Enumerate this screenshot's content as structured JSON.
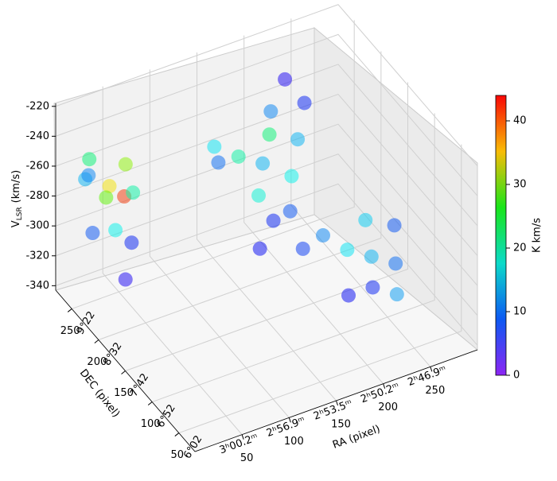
{
  "chart_data": {
    "type": "scatter3d",
    "xlabel": "RA (pixel)",
    "ylabel": "DEC (pixel)",
    "zlabel": [
      "V",
      "LSR",
      "(km/s)"
    ],
    "xlim": [
      0,
      300
    ],
    "xticks": [
      50,
      100,
      150,
      200,
      250
    ],
    "xticks2": [
      {
        "value": 50,
        "label": "3ʰ00.2ᵐ"
      },
      {
        "value": 100,
        "label": "2ʰ56.9ᵐ"
      },
      {
        "value": 150,
        "label": "2ʰ53.5ᵐ"
      },
      {
        "value": 200,
        "label": "2ʰ50.2ᵐ"
      },
      {
        "value": 250,
        "label": "2ʰ46.9ᵐ"
      }
    ],
    "ylim": [
      20,
      280
    ],
    "yticks": [
      50,
      100,
      150,
      200,
      250
    ],
    "yticks2": [
      {
        "value": 50,
        "label": "6°02"
      },
      {
        "value": 100,
        "label": "6°52"
      },
      {
        "value": 150,
        "label": "7°42"
      },
      {
        "value": 200,
        "label": "8°32"
      },
      {
        "value": 250,
        "label": "9°22"
      }
    ],
    "zlim": [
      -343,
      -218
    ],
    "zticks": [
      -340,
      -320,
      -300,
      -280,
      -260,
      -240,
      -220
    ],
    "colorbar_label": "K km/s",
    "clim": [
      0,
      44
    ],
    "cticks": [
      0,
      10,
      20,
      30,
      40
    ],
    "grid": true,
    "series": [
      {
        "x": [
          20,
          30,
          40,
          50,
          35,
          25,
          45,
          60,
          15,
          55,
          40,
          65,
          140,
          160,
          180,
          170,
          190,
          200,
          150,
          180,
          205,
          220,
          160,
          195,
          215,
          230,
          210,
          230,
          250,
          270,
          240,
          260,
          220,
          280,
          200,
          255
        ],
        "y": [
          260,
          270,
          250,
          240,
          230,
          255,
          265,
          255,
          245,
          235,
          220,
          250,
          230,
          220,
          210,
          200,
          215,
          230,
          240,
          190,
          200,
          215,
          180,
          185,
          230,
          220,
          150,
          140,
          130,
          120,
          110,
          100,
          120,
          140,
          170,
          150
        ],
        "z": [
          -265,
          -258,
          -270,
          -275,
          -290,
          -300,
          -285,
          -262,
          -255,
          -305,
          -320,
          -280,
          -258,
          -265,
          -270,
          -285,
          -255,
          -248,
          -275,
          -300,
          -280,
          -265,
          -310,
          -295,
          -230,
          -245,
          -300,
          -310,
          -315,
          -320,
          -325,
          -330,
          -330,
          -305,
          -315,
          -300
        ],
        "values": [
          12,
          20,
          35,
          42,
          15,
          8,
          28,
          30,
          10,
          6,
          4,
          18,
          14,
          18,
          12,
          16,
          20,
          10,
          9,
          6,
          15,
          12,
          5,
          8,
          4,
          6,
          10,
          14,
          12,
          9,
          6,
          11,
          5,
          8,
          7,
          13
        ]
      }
    ]
  }
}
